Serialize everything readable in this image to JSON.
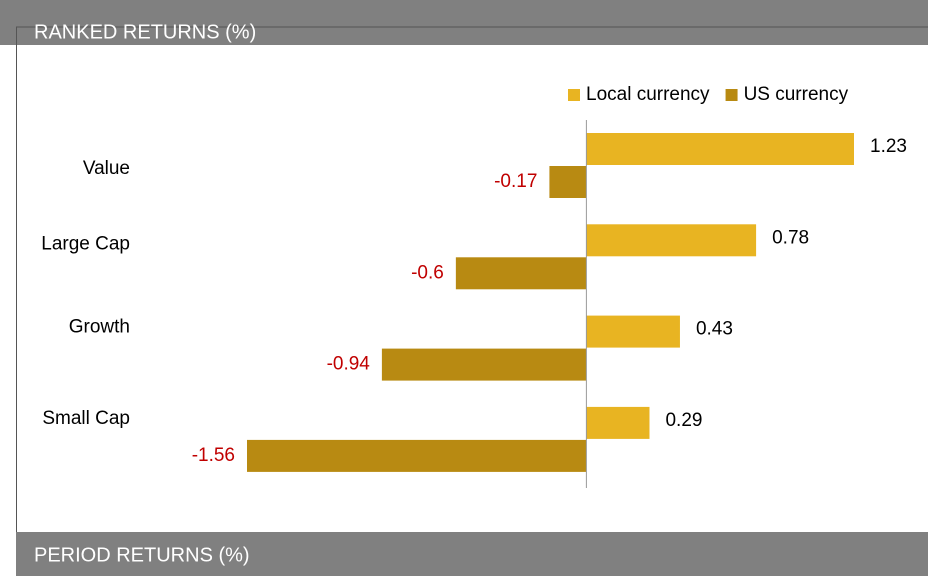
{
  "header": {
    "title": "RANKED RETURNS (%)"
  },
  "chart_data": {
    "type": "bar",
    "orientation": "horizontal",
    "categories": [
      "Value",
      "Large Cap",
      "Growth",
      "Small Cap"
    ],
    "series": [
      {
        "name": "Local currency",
        "color": "#e8b422",
        "values": [
          1.23,
          0.78,
          0.43,
          0.29
        ]
      },
      {
        "name": "US currency",
        "color": "#b88a12",
        "values": [
          -0.17,
          -0.6,
          -0.94,
          -1.56
        ]
      }
    ],
    "negative_label_color": "#c00000",
    "legend": "top-right"
  },
  "footer": {
    "title": "PERIOD RETURNS (%)"
  }
}
